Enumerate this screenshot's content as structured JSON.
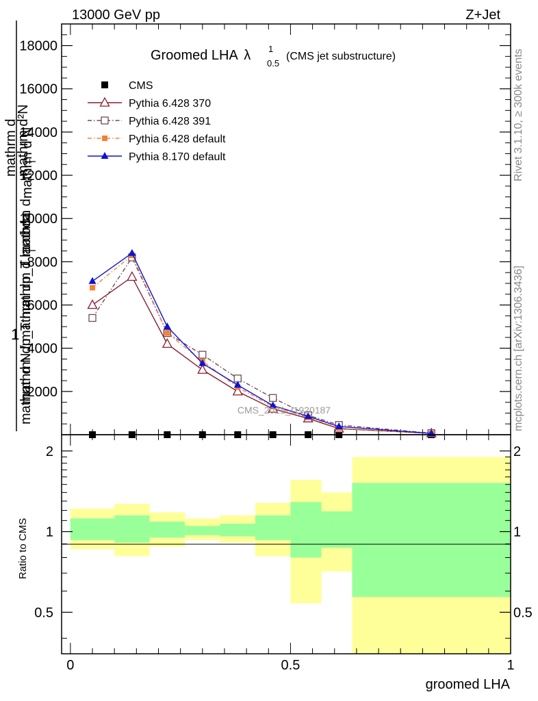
{
  "header": {
    "left": "13000 GeV pp",
    "right": "Z+Jet"
  },
  "title": {
    "main": "Groomed LHA",
    "lambda": "λ",
    "sup": "1",
    "sub": "0.5",
    "note": "(CMS jet substructure)"
  },
  "side_labels": {
    "rivet": "Rivet 3.1.10, ≥ 300k events",
    "mcplots": "mcplots.cern.ch [arXiv:1306.3436]"
  },
  "watermark": "CMS_2021_I1920187",
  "ylabel_main": {
    "numerator_lines": [
      "mathrm d",
      "mathrm dp_T mathrm d lambda"
    ],
    "prefix": "1",
    "denominator_lines": [
      "mathrm d N / mathrm dp_T mathrm d",
      "mathrm d N"
    ],
    "subscripts": [
      "T",
      "T"
    ],
    "overline": "mathrm d²N"
  },
  "ylabel_ratio": "Ratio to CMS",
  "xlabel": "groomed LHA",
  "legend": [
    {
      "name": "CMS",
      "color": "#000000",
      "marker": "square-filled",
      "line": "none"
    },
    {
      "name": "Pythia 6.428 370",
      "color": "#8b1a2b",
      "marker": "triangle-open",
      "line": "solid"
    },
    {
      "name": "Pythia 6.428 391",
      "color": "#6e4a55",
      "marker": "square-open",
      "line": "dashdot"
    },
    {
      "name": "Pythia 6.428 default",
      "color": "#f58233",
      "marker": "square-filled-small",
      "line": "dashdot"
    },
    {
      "name": "Pythia 8.170 default",
      "color": "#0a14d8",
      "marker": "triangle-filled",
      "line": "solid"
    }
  ],
  "chart_data": [
    {
      "type": "line",
      "panel": "main",
      "x": [
        0.05,
        0.14,
        0.22,
        0.3,
        0.38,
        0.46,
        0.54,
        0.61,
        0.82
      ],
      "xlim": [
        -0.02,
        1.0
      ],
      "ylim": [
        0,
        19000
      ],
      "yticks": [
        2000,
        4000,
        6000,
        8000,
        10000,
        12000,
        14000,
        16000,
        18000
      ],
      "ytick_labels": [
        "2000",
        "4000",
        "6000",
        "8000",
        "10000",
        "12000",
        "14000",
        "16000",
        "18000"
      ],
      "series": [
        {
          "name": "CMS",
          "values": [
            0,
            0,
            0,
            0,
            0,
            0,
            0,
            0,
            0
          ]
        },
        {
          "name": "Pythia 6.428 370",
          "values": [
            6000,
            7300,
            4200,
            3000,
            2000,
            1200,
            750,
            280,
            60
          ]
        },
        {
          "name": "Pythia 6.428 391",
          "values": [
            5400,
            8200,
            4700,
            3700,
            2600,
            1700,
            900,
            450,
            70
          ]
        },
        {
          "name": "Pythia 6.428 default",
          "values": [
            6800,
            8300,
            4700,
            3400,
            2200,
            1300,
            800,
            300,
            60
          ]
        },
        {
          "name": "Pythia 8.170 default",
          "values": [
            7100,
            8400,
            5000,
            3300,
            2300,
            1350,
            850,
            380,
            60
          ]
        }
      ]
    },
    {
      "type": "area",
      "panel": "ratio",
      "xlim": [
        -0.02,
        1.0
      ],
      "ylim": [
        0.35,
        2.3
      ],
      "ylog": true,
      "yticks": [
        0.5,
        1,
        2
      ],
      "ytick_labels": [
        "0.5",
        "1",
        "2"
      ],
      "xticks": [
        0,
        0.5,
        1
      ],
      "xtick_labels": [
        "0",
        "0.5",
        "1"
      ],
      "bins": [
        {
          "x0": 0.0,
          "x1": 0.1,
          "inner": [
            0.93,
            1.12
          ],
          "outer": [
            0.86,
            1.22
          ]
        },
        {
          "x0": 0.1,
          "x1": 0.18,
          "inner": [
            0.91,
            1.15
          ],
          "outer": [
            0.81,
            1.27
          ]
        },
        {
          "x0": 0.18,
          "x1": 0.26,
          "inner": [
            0.95,
            1.09
          ],
          "outer": [
            0.88,
            1.18
          ]
        },
        {
          "x0": 0.26,
          "x1": 0.34,
          "inner": [
            0.97,
            1.05
          ],
          "outer": [
            0.93,
            1.12
          ]
        },
        {
          "x0": 0.34,
          "x1": 0.42,
          "inner": [
            0.96,
            1.07
          ],
          "outer": [
            0.91,
            1.15
          ]
        },
        {
          "x0": 0.42,
          "x1": 0.5,
          "inner": [
            0.93,
            1.15
          ],
          "outer": [
            0.81,
            1.28
          ]
        },
        {
          "x0": 0.5,
          "x1": 0.57,
          "inner": [
            0.8,
            1.29
          ],
          "outer": [
            0.54,
            1.56
          ]
        },
        {
          "x0": 0.57,
          "x1": 0.64,
          "inner": [
            0.87,
            1.19
          ],
          "outer": [
            0.71,
            1.4
          ]
        },
        {
          "x0": 0.64,
          "x1": 1.0,
          "inner": [
            0.57,
            1.52
          ],
          "outer": [
            0.3,
            1.9
          ]
        }
      ],
      "reference": 1
    }
  ],
  "colors": {
    "inner_band": "#99ff99",
    "outer_band": "#ffff99",
    "axis": "#000000",
    "side_text": "#888888"
  }
}
